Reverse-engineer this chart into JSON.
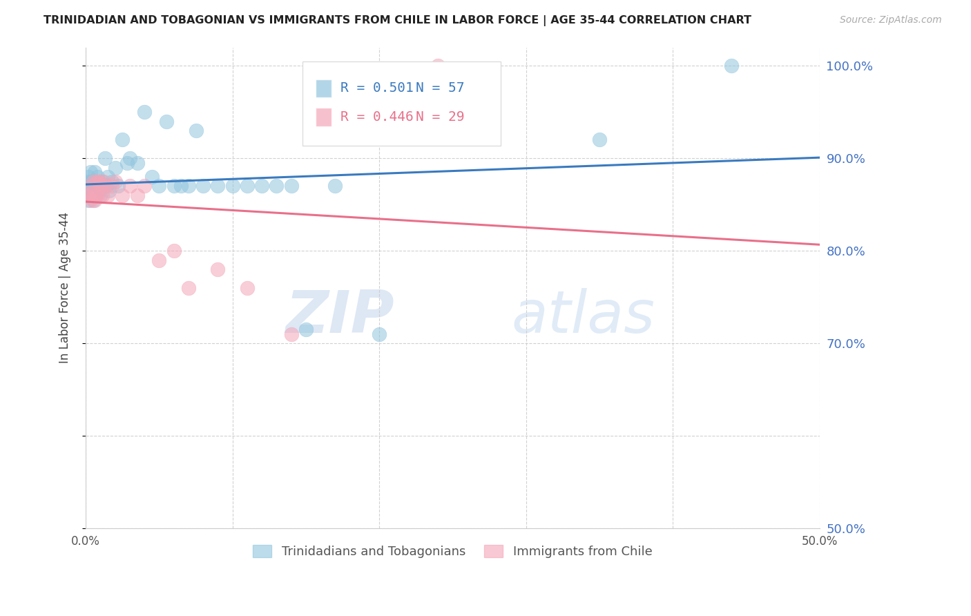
{
  "title": "TRINIDADIAN AND TOBAGONIAN VS IMMIGRANTS FROM CHILE IN LABOR FORCE | AGE 35-44 CORRELATION CHART",
  "source": "Source: ZipAtlas.com",
  "ylabel": "In Labor Force | Age 35-44",
  "xlim": [
    0.0,
    0.5
  ],
  "ylim": [
    0.5,
    1.02
  ],
  "blue_color": "#92c5de",
  "pink_color": "#f4a6b8",
  "blue_line_color": "#3a7abf",
  "pink_line_color": "#e8708a",
  "R_blue": 0.501,
  "N_blue": 57,
  "R_pink": 0.446,
  "N_pink": 29,
  "legend_label_blue": "Trinidadians and Tobagonians",
  "legend_label_pink": "Immigrants from Chile",
  "watermark_zip": "ZIP",
  "watermark_atlas": "atlas",
  "blue_x": [
    0.001,
    0.002,
    0.002,
    0.002,
    0.003,
    0.003,
    0.003,
    0.004,
    0.004,
    0.004,
    0.005,
    0.005,
    0.005,
    0.006,
    0.006,
    0.006,
    0.007,
    0.007,
    0.008,
    0.008,
    0.009,
    0.009,
    0.01,
    0.01,
    0.011,
    0.012,
    0.013,
    0.014,
    0.015,
    0.016,
    0.018,
    0.02,
    0.022,
    0.025,
    0.028,
    0.03,
    0.035,
    0.04,
    0.045,
    0.05,
    0.055,
    0.06,
    0.065,
    0.07,
    0.075,
    0.08,
    0.09,
    0.1,
    0.11,
    0.12,
    0.13,
    0.14,
    0.15,
    0.17,
    0.2,
    0.35,
    0.44
  ],
  "blue_y": [
    0.875,
    0.88,
    0.87,
    0.855,
    0.885,
    0.875,
    0.86,
    0.87,
    0.875,
    0.865,
    0.86,
    0.875,
    0.855,
    0.87,
    0.865,
    0.885,
    0.875,
    0.86,
    0.88,
    0.87,
    0.865,
    0.875,
    0.87,
    0.86,
    0.875,
    0.87,
    0.9,
    0.87,
    0.88,
    0.865,
    0.875,
    0.89,
    0.87,
    0.92,
    0.895,
    0.9,
    0.895,
    0.95,
    0.88,
    0.87,
    0.94,
    0.87,
    0.87,
    0.87,
    0.93,
    0.87,
    0.87,
    0.87,
    0.87,
    0.87,
    0.87,
    0.87,
    0.715,
    0.87,
    0.71,
    0.92,
    1.0
  ],
  "pink_x": [
    0.001,
    0.002,
    0.003,
    0.004,
    0.005,
    0.005,
    0.006,
    0.007,
    0.008,
    0.008,
    0.009,
    0.01,
    0.011,
    0.012,
    0.013,
    0.015,
    0.018,
    0.02,
    0.025,
    0.03,
    0.035,
    0.04,
    0.05,
    0.06,
    0.07,
    0.09,
    0.11,
    0.14,
    0.24
  ],
  "pink_y": [
    0.86,
    0.86,
    0.855,
    0.87,
    0.875,
    0.86,
    0.855,
    0.86,
    0.875,
    0.86,
    0.875,
    0.87,
    0.86,
    0.875,
    0.87,
    0.86,
    0.87,
    0.875,
    0.86,
    0.87,
    0.86,
    0.87,
    0.79,
    0.8,
    0.76,
    0.78,
    0.76,
    0.71,
    1.0
  ]
}
